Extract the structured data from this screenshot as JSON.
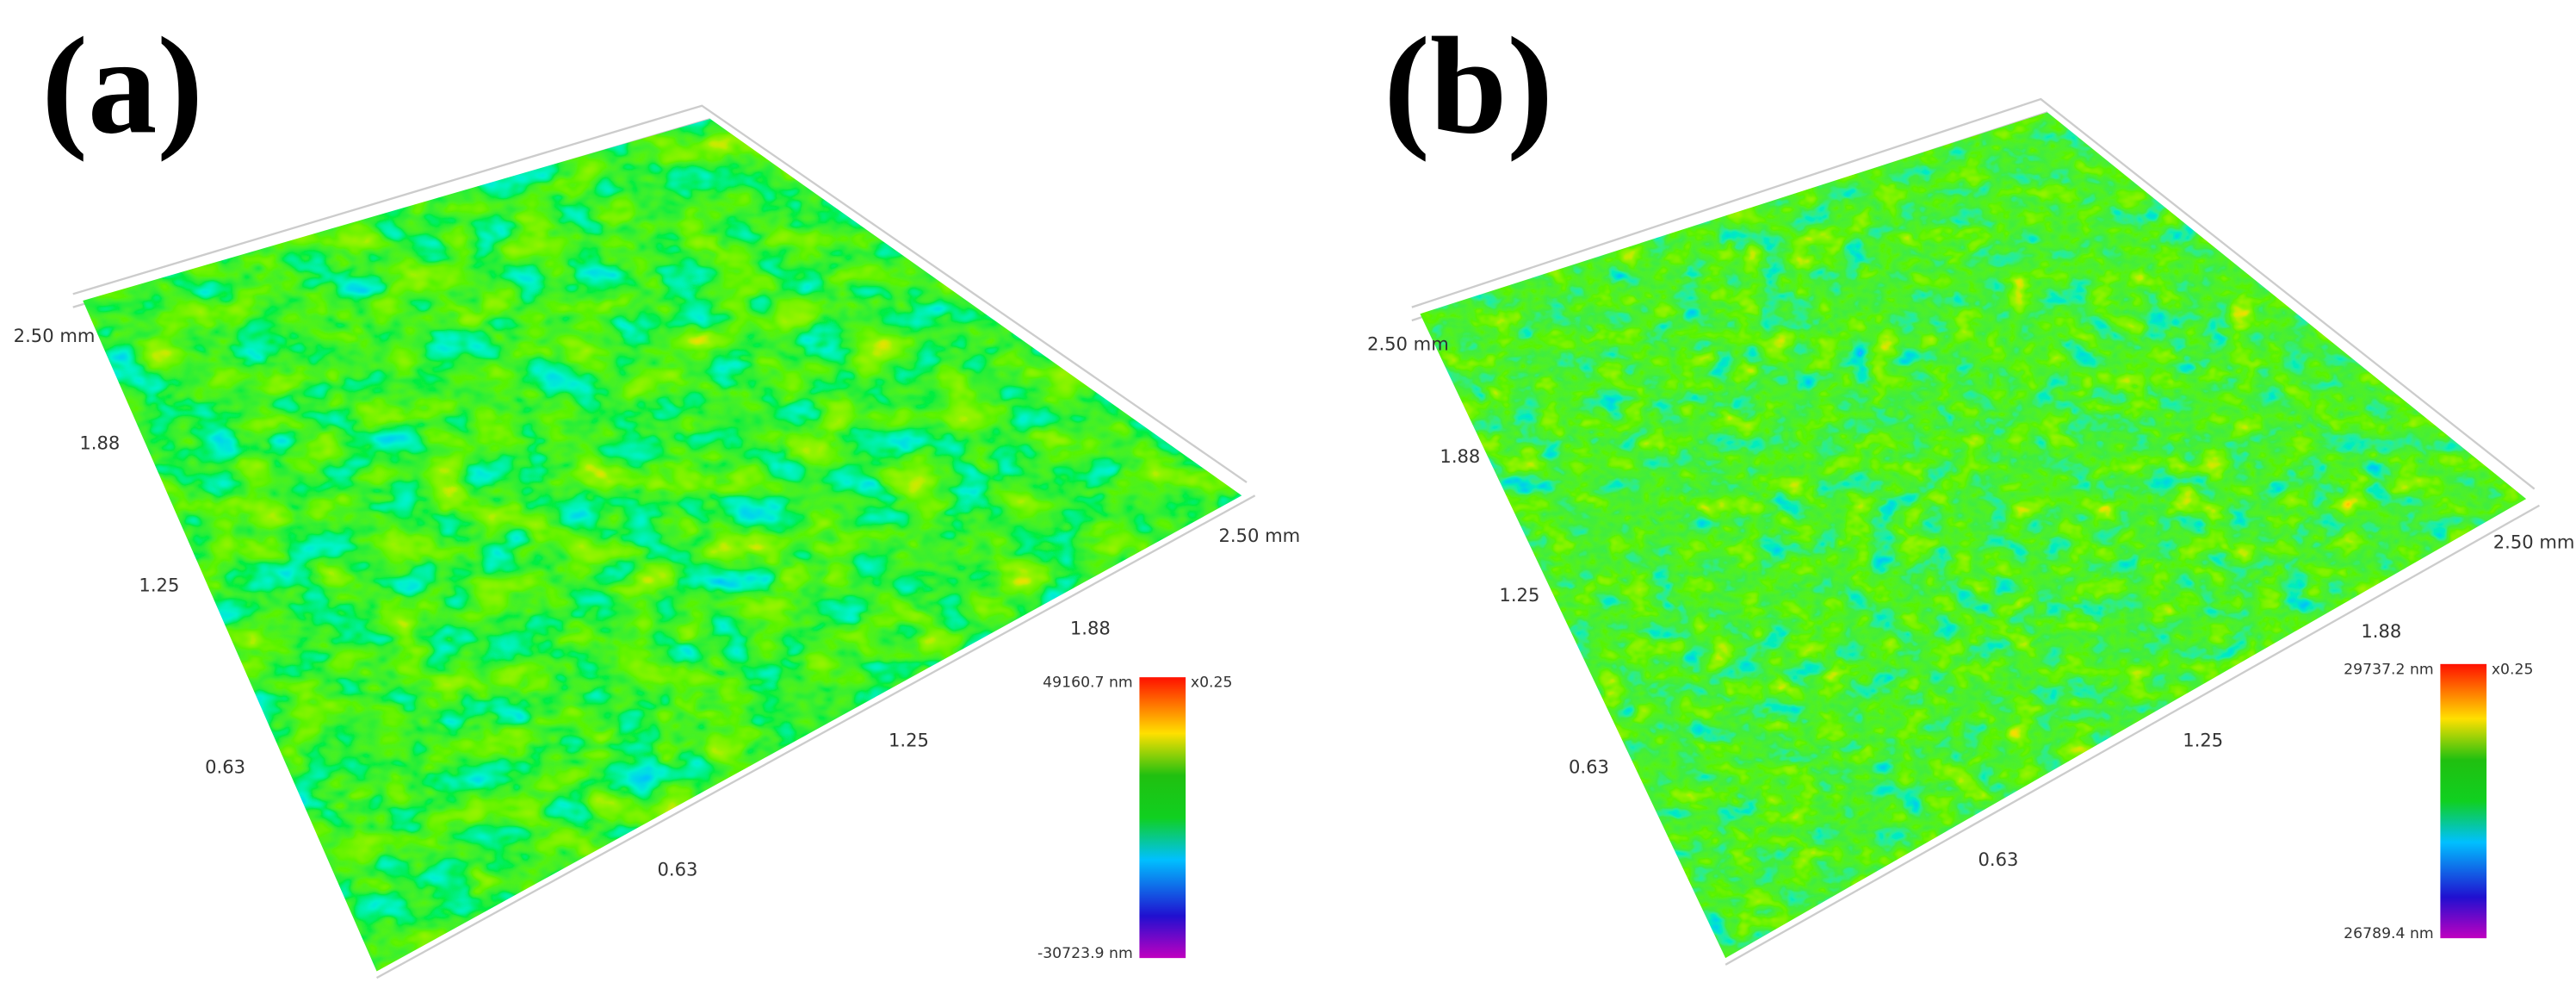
{
  "panels": [
    {
      "label": "(a)",
      "y_axis_ticks": [
        "2.50 mm",
        "1.88",
        "1.25",
        "0.63"
      ],
      "x_axis_ticks": [
        "0.63",
        "1.25",
        "1.88",
        "2.50 mm"
      ],
      "colorbar": {
        "max": "49160.7 nm",
        "min": "-30723.9 nm",
        "scale": "x0.25"
      }
    },
    {
      "label": "(b)",
      "y_axis_ticks": [
        "2.50 mm",
        "1.88",
        "1.25",
        "0.63"
      ],
      "x_axis_ticks": [
        "0.63",
        "1.25",
        "1.88",
        "2.50 mm"
      ],
      "colorbar": {
        "max": "29737.2 nm",
        "min": "26789.4 nm",
        "scale": "x0.25"
      }
    }
  ]
}
